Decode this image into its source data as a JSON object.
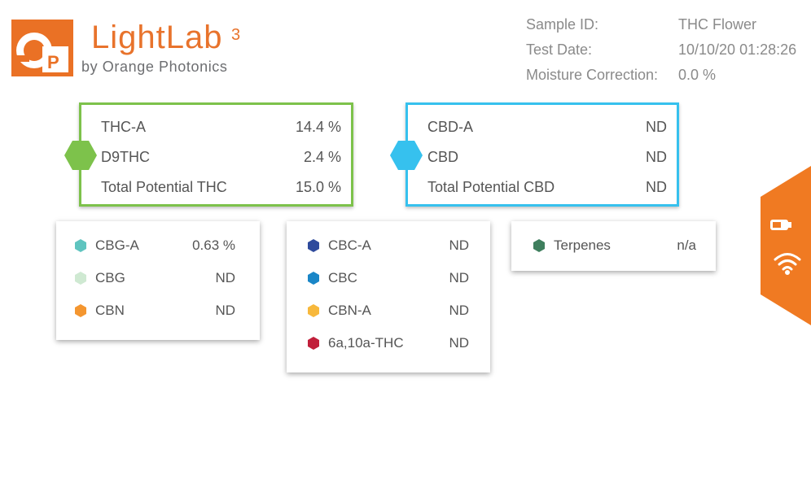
{
  "logo": {
    "mark_o": "O",
    "mark_p": "P",
    "name": "LightLab",
    "superscript": "3",
    "tagline": "by Orange Photonics"
  },
  "sample_info": [
    {
      "label": "Sample ID:",
      "value": "THC Flower"
    },
    {
      "label": "Test Date:",
      "value": "10/10/20 01:28:26"
    },
    {
      "label": "Moisture Correction:",
      "value": "0.0 %"
    }
  ],
  "thc_box": {
    "accent_color": "#7dc24b",
    "rows": [
      {
        "label": "THC-A",
        "value": "14.4 %"
      },
      {
        "label": "D9THC",
        "value": "2.4 %"
      },
      {
        "label": "Total Potential THC",
        "value": "15.0 %"
      }
    ]
  },
  "cbd_box": {
    "accent_color": "#36c1ee",
    "rows": [
      {
        "label": "CBD-A",
        "value": "ND"
      },
      {
        "label": "CBD",
        "value": "ND"
      },
      {
        "label": "Total Potential CBD",
        "value": "ND"
      }
    ]
  },
  "card_a": [
    {
      "label": "CBG-A",
      "value": "0.63 %",
      "color": "#5fc4bf"
    },
    {
      "label": "CBG",
      "value": "ND",
      "color": "#cfe9d2"
    },
    {
      "label": "CBN",
      "value": "ND",
      "color": "#f49630"
    }
  ],
  "card_b": [
    {
      "label": "CBC-A",
      "value": "ND",
      "color": "#2e4a9c"
    },
    {
      "label": "CBC",
      "value": "ND",
      "color": "#1a86c7"
    },
    {
      "label": "CBN-A",
      "value": "ND",
      "color": "#f7b83c"
    },
    {
      "label": "6a,10a-THC",
      "value": "ND",
      "color": "#c11f3a"
    }
  ],
  "card_c": [
    {
      "label": "Terpenes",
      "value": "n/a",
      "color": "#3f7f5e"
    }
  ],
  "status": {
    "tab_color": "#f07a22",
    "icons": [
      "battery-icon",
      "wifi-icon"
    ]
  }
}
